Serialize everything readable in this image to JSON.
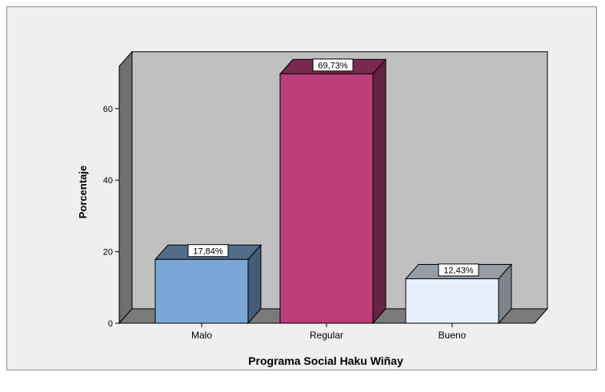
{
  "chart_data": {
    "type": "bar",
    "categories": [
      "Malo",
      "Regular",
      "Bueno"
    ],
    "values": [
      17.84,
      69.73,
      12.43
    ],
    "data_labels": [
      "17,84%",
      "69,73%",
      "12,43%"
    ],
    "bar_colors": [
      "#7ba7d6",
      "#bb3d7a",
      "#e6f0fb"
    ],
    "xlabel": "Programa Social Haku Wiñay",
    "ylabel": "Porcentaje",
    "yticks": [
      0,
      20,
      40,
      60
    ],
    "ytick_labels": [
      "0",
      "20",
      "40",
      "60"
    ],
    "ylim": [
      0,
      75
    ],
    "style": "3d-bar",
    "wall_color": "#c0c0c0",
    "floor_color": "#7a7a7a",
    "grid": false
  }
}
